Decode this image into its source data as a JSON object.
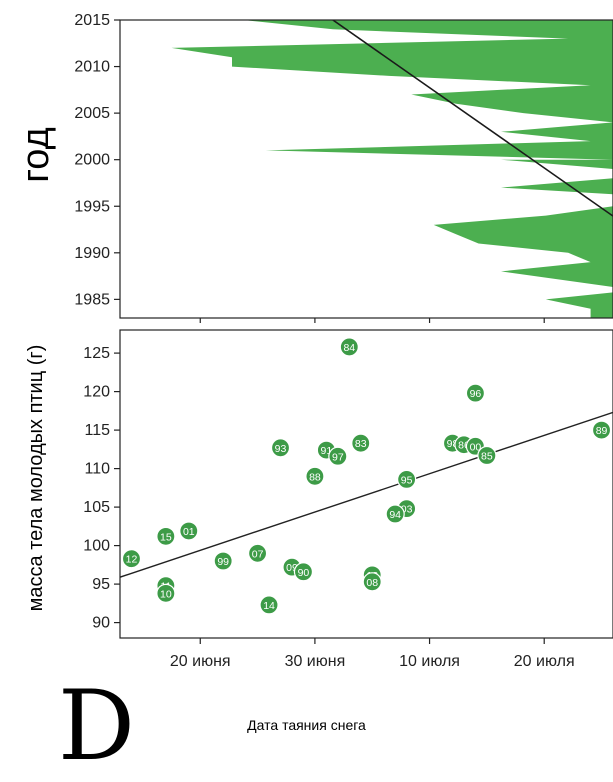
{
  "panel_letter": "D",
  "chart_data": [
    {
      "type": "area",
      "ylabel": "год",
      "xlabel": "",
      "yticks": [
        1985,
        1990,
        1995,
        2000,
        2005,
        2010,
        2015
      ],
      "ylim": [
        1983,
        2015
      ],
      "xlim_days": [
        14,
        36
      ],
      "fill_color": "#4caf50",
      "trend_line_color": "#1a1a1a",
      "snowmelt_edge": [
        {
          "year": 2015,
          "day": 19.5
        },
        {
          "year": 2014,
          "day": 23.5
        },
        {
          "year": 2013,
          "day": 34
        },
        {
          "year": 2012,
          "day": 16.3
        },
        {
          "year": 2011,
          "day": 19
        },
        {
          "year": 2010,
          "day": 19
        },
        {
          "year": 2009,
          "day": 26
        },
        {
          "year": 2008,
          "day": 35
        },
        {
          "year": 2007,
          "day": 27
        },
        {
          "year": 2006,
          "day": 29
        },
        {
          "year": 2005,
          "day": 32
        },
        {
          "year": 2004,
          "day": 36
        },
        {
          "year": 2003,
          "day": 31
        },
        {
          "year": 2002,
          "day": 35
        },
        {
          "year": 2001,
          "day": 20.5
        },
        {
          "year": 2000,
          "day": 36
        },
        {
          "year": 2000,
          "day": 31
        },
        {
          "year": 1999,
          "day": 36
        },
        {
          "year": 1998,
          "day": 36
        },
        {
          "year": 1997,
          "day": 31
        },
        {
          "year": 1996,
          "day": 38
        },
        {
          "year": 1995,
          "day": 36
        },
        {
          "year": 1994,
          "day": 33
        },
        {
          "year": 1993,
          "day": 28
        },
        {
          "year": 1992,
          "day": 29
        },
        {
          "year": 1991,
          "day": 30
        },
        {
          "year": 1990,
          "day": 34
        },
        {
          "year": 1989,
          "day": 35
        },
        {
          "year": 1988,
          "day": 31
        },
        {
          "year": 1987,
          "day": 34
        },
        {
          "year": 1986,
          "day": 37
        },
        {
          "year": 1985,
          "day": 33
        },
        {
          "year": 1984,
          "day": 35
        }
      ],
      "trend": {
        "x": [
          23.5,
          42.5
        ],
        "y": [
          2015,
          1983
        ]
      }
    },
    {
      "type": "scatter",
      "ylabel": "масса тела молодых птиц (г)",
      "xlabel": "Дата таяния снега",
      "ylim": [
        88,
        128
      ],
      "yticks": [
        90,
        95,
        100,
        105,
        110,
        115,
        120,
        125
      ],
      "xlim": [
        "2013-06-13",
        "2013-07-26"
      ],
      "xticks": [
        "20 июня",
        "30 июня",
        "10 июля",
        "20 июля"
      ],
      "xtick_dates": [
        "2013-06-20",
        "2013-06-30",
        "2013-07-10",
        "2013-07-20"
      ],
      "point_color": "#3d9b47",
      "points": [
        {
          "label": "84",
          "date": "2013-07-03",
          "mass": 125.8
        },
        {
          "label": "96",
          "date": "2013-07-14",
          "mass": 119.8
        },
        {
          "label": "89",
          "date": "2013-07-25",
          "mass": 115.0
        },
        {
          "label": "83",
          "date": "2013-07-04",
          "mass": 113.3
        },
        {
          "label": "98",
          "date": "2013-07-12",
          "mass": 113.3
        },
        {
          "label": "86",
          "date": "2013-07-13",
          "mass": 113.1
        },
        {
          "label": "00",
          "date": "2013-07-14",
          "mass": 112.9
        },
        {
          "label": "85",
          "date": "2013-07-15",
          "mass": 111.7
        },
        {
          "label": "93",
          "date": "2013-06-27",
          "mass": 112.7
        },
        {
          "label": "91",
          "date": "2013-07-01",
          "mass": 112.4
        },
        {
          "label": "97",
          "date": "2013-07-02",
          "mass": 111.6
        },
        {
          "label": "88",
          "date": "2013-06-30",
          "mass": 109.0
        },
        {
          "label": "95",
          "date": "2013-07-08",
          "mass": 108.6
        },
        {
          "label": "03",
          "date": "2013-07-08",
          "mass": 104.8
        },
        {
          "label": "94",
          "date": "2013-07-07",
          "mass": 104.1
        },
        {
          "label": "01",
          "date": "2013-06-19",
          "mass": 101.9
        },
        {
          "label": "15",
          "date": "2013-06-17",
          "mass": 101.2
        },
        {
          "label": "12",
          "date": "2013-06-14",
          "mass": 98.3
        },
        {
          "label": "99",
          "date": "2013-06-22",
          "mass": 98.0
        },
        {
          "label": "07",
          "date": "2013-06-25",
          "mass": 99.0
        },
        {
          "label": "09",
          "date": "2013-06-28",
          "mass": 97.2
        },
        {
          "label": "90",
          "date": "2013-06-29",
          "mass": 96.6
        },
        {
          "label": "13",
          "date": "2013-07-05",
          "mass": 96.2
        },
        {
          "label": "08",
          "date": "2013-07-05",
          "mass": 95.3
        },
        {
          "label": "11",
          "date": "2013-06-17",
          "mass": 94.8
        },
        {
          "label": "10",
          "date": "2013-06-17",
          "mass": 93.8
        },
        {
          "label": "14",
          "date": "2013-06-26",
          "mass": 92.3
        }
      ],
      "trend": {
        "date": [
          "2013-06-13",
          "2013-07-26"
        ],
        "mass": [
          95.9,
          117.3
        ]
      }
    }
  ]
}
